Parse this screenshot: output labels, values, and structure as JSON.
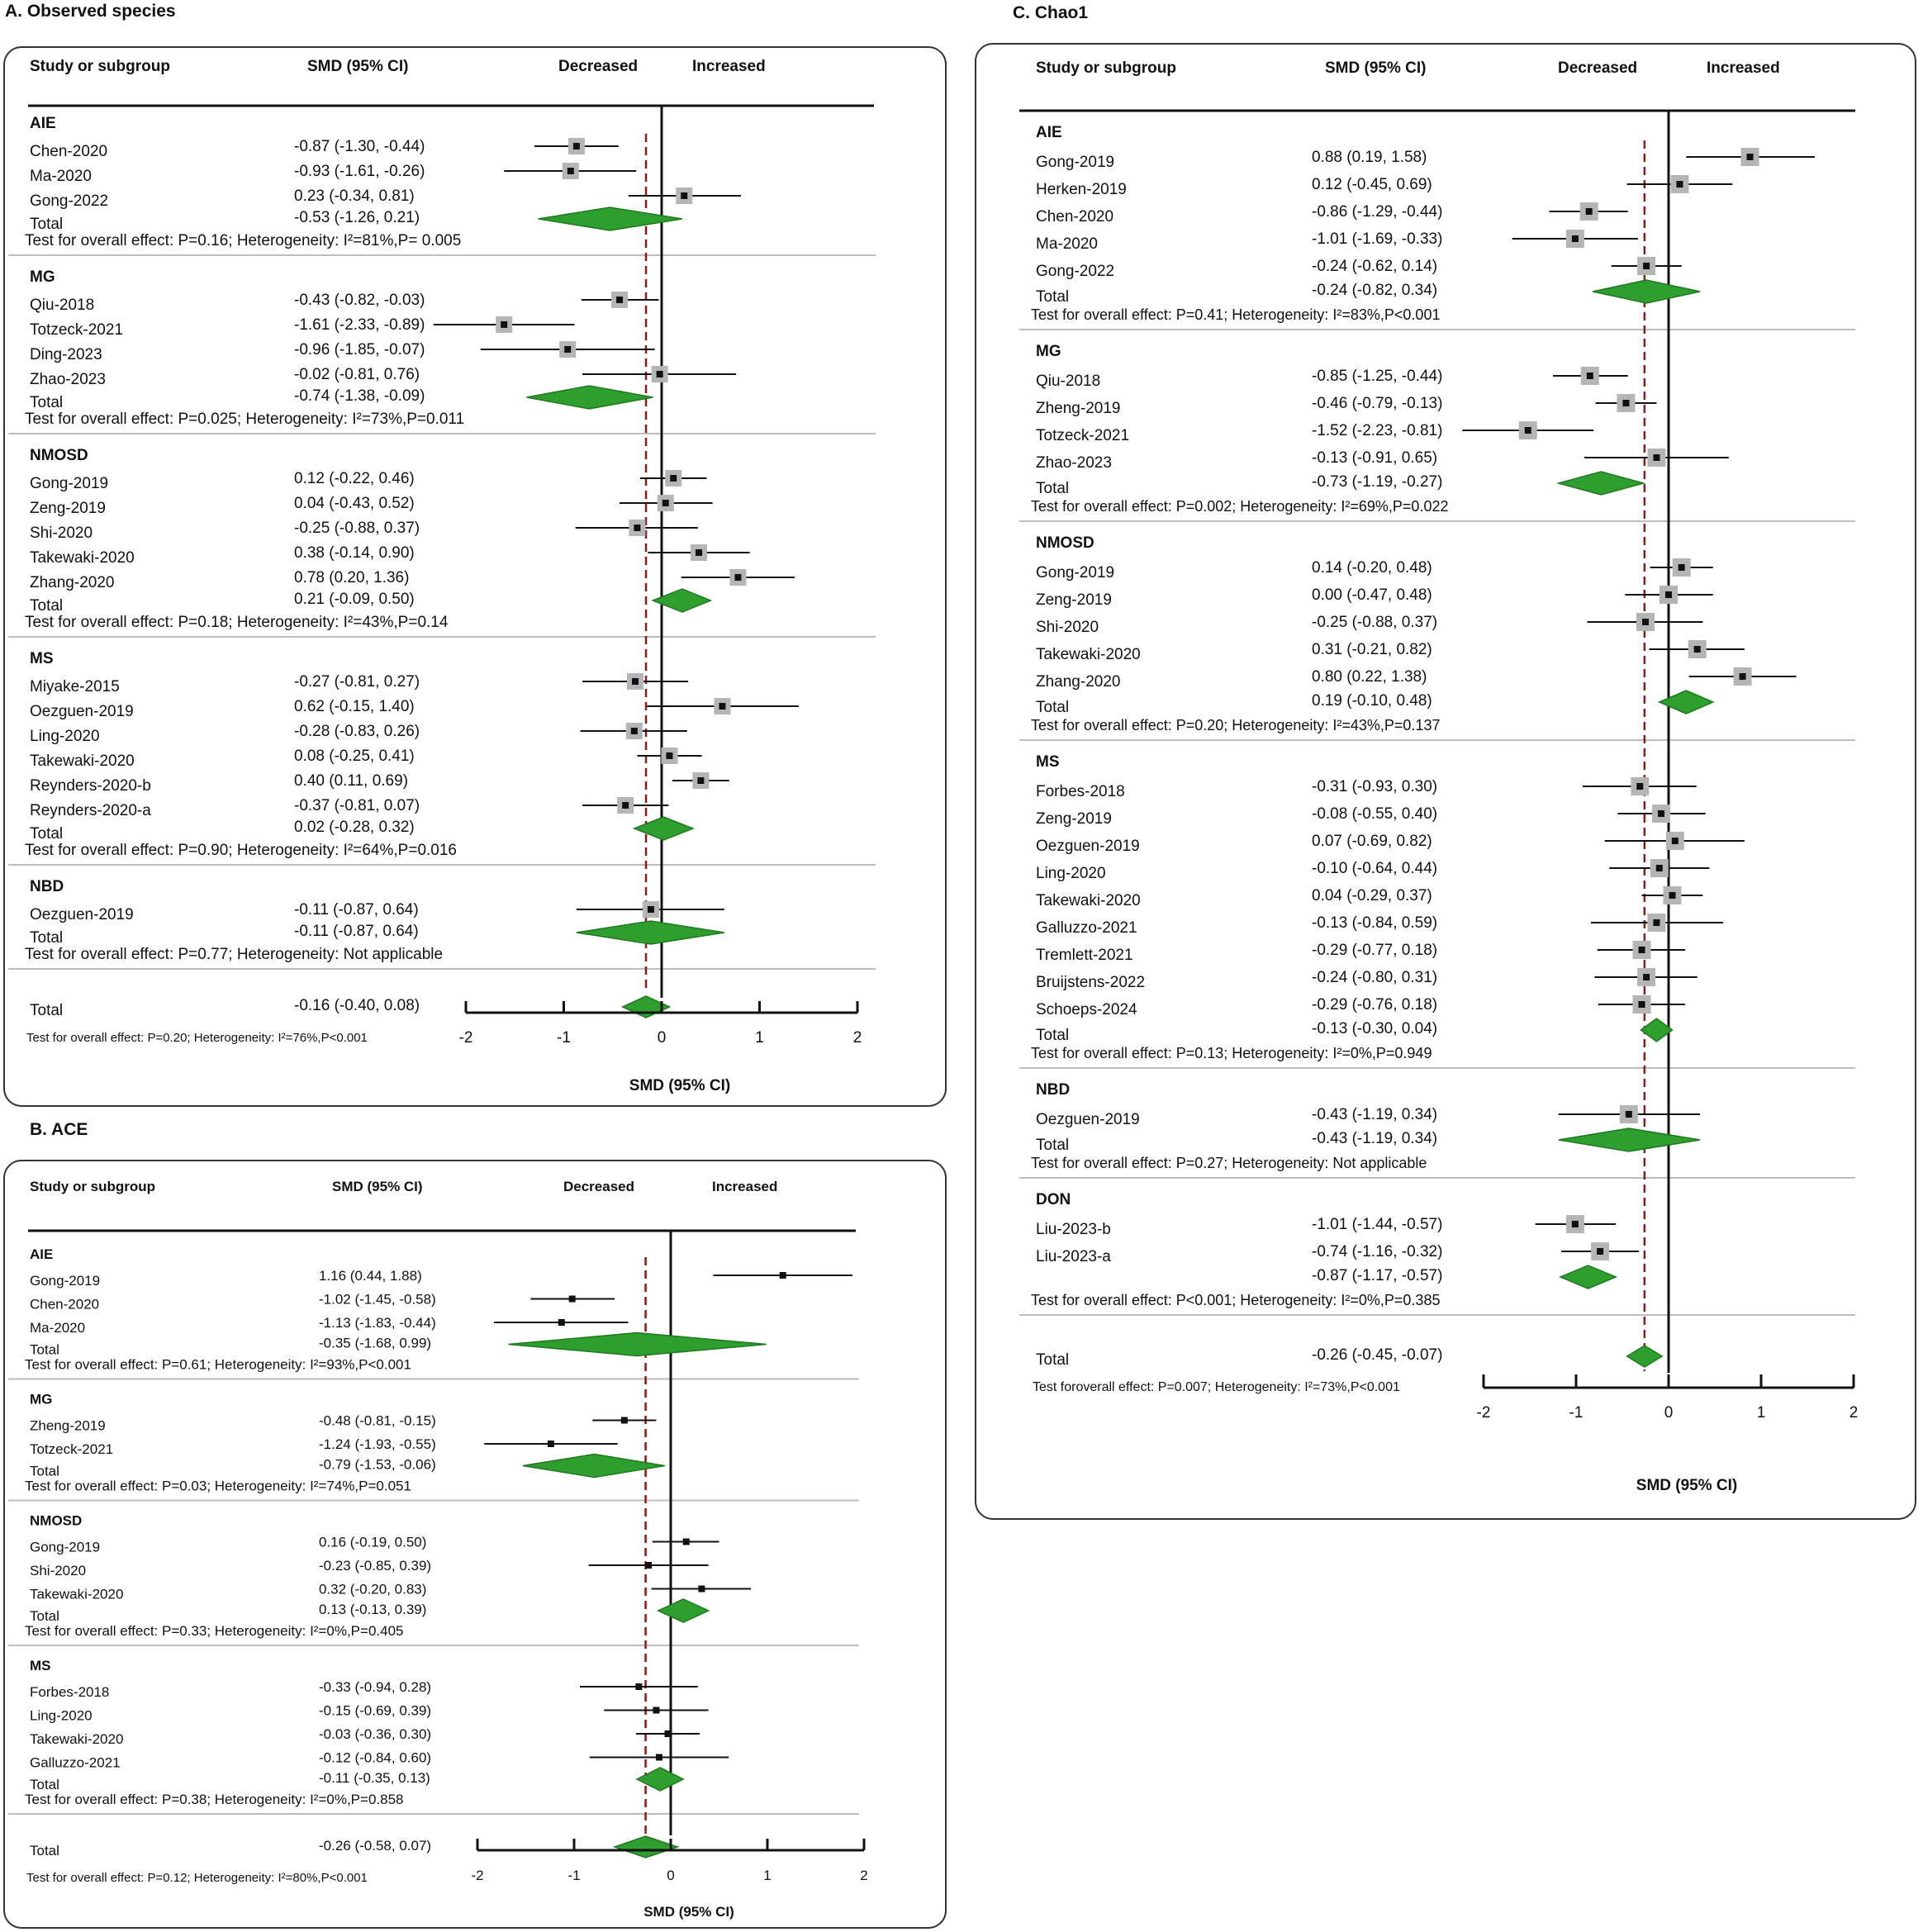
{
  "colors": {
    "diamond_fill": "#2e9e2e",
    "diamond_stroke": "#1f7a1f",
    "ref_line": "#8b1a1a",
    "ci_line": "#111111",
    "marker_box": "#b5b5b5",
    "marker_point": "#111111"
  },
  "chart_data": [
    {
      "id": "A",
      "type": "forest",
      "title": "A. Observed species",
      "headers": {
        "study": "Study or subgroup",
        "smd": "SMD (95% CI)",
        "decreased": "Decreased",
        "increased": "Increased"
      },
      "xlabel": "SMD (95% CI)",
      "xlim": [
        -2,
        2
      ],
      "ticks": [
        "-2",
        "-1",
        "0",
        "1",
        "2"
      ],
      "overall_line": -0.16,
      "groups": [
        {
          "name": "AIE",
          "studies": [
            {
              "label": "Chen-2020",
              "ci_text": "-0.87 (-1.30, -0.44)",
              "est": -0.87,
              "lo": -1.3,
              "hi": -0.44
            },
            {
              "label": "Ma-2020",
              "ci_text": "-0.93 (-1.61, -0.26)",
              "est": -0.93,
              "lo": -1.61,
              "hi": -0.26
            },
            {
              "label": "Gong-2022",
              "ci_text": "0.23 (-0.34, 0.81)",
              "est": 0.23,
              "lo": -0.34,
              "hi": 0.81
            }
          ],
          "total": {
            "label": "Total",
            "ci_text": "-0.53 (-1.26, 0.21)",
            "est": -0.53,
            "lo": -1.26,
            "hi": 0.21
          },
          "test": "Test for overall effect: P=0.16; Heterogeneity: I²=81%,P= 0.005"
        },
        {
          "name": "MG",
          "studies": [
            {
              "label": "Qiu-2018",
              "ci_text": "-0.43 (-0.82, -0.03)",
              "est": -0.43,
              "lo": -0.82,
              "hi": -0.03
            },
            {
              "label": "Totzeck-2021",
              "ci_text": "-1.61 (-2.33, -0.89)",
              "est": -1.61,
              "lo": -2.33,
              "hi": -0.89
            },
            {
              "label": "Ding-2023",
              "ci_text": "-0.96 (-1.85, -0.07)",
              "est": -0.96,
              "lo": -1.85,
              "hi": -0.07
            },
            {
              "label": "Zhao-2023",
              "ci_text": "-0.02 (-0.81, 0.76)",
              "est": -0.02,
              "lo": -0.81,
              "hi": 0.76
            }
          ],
          "total": {
            "label": "Total",
            "ci_text": "-0.74 (-1.38, -0.09)",
            "est": -0.74,
            "lo": -1.38,
            "hi": -0.09
          },
          "test": "Test for overall effect: P=0.025; Heterogeneity: I²=73%,P=0.011"
        },
        {
          "name": "NMOSD",
          "studies": [
            {
              "label": "Gong-2019",
              "ci_text": "0.12 (-0.22, 0.46)",
              "est": 0.12,
              "lo": -0.22,
              "hi": 0.46
            },
            {
              "label": "Zeng-2019",
              "ci_text": "0.04 (-0.43, 0.52)",
              "est": 0.04,
              "lo": -0.43,
              "hi": 0.52
            },
            {
              "label": "Shi-2020",
              "ci_text": "-0.25 (-0.88, 0.37)",
              "est": -0.25,
              "lo": -0.88,
              "hi": 0.37
            },
            {
              "label": "Takewaki-2020",
              "ci_text": "0.38 (-0.14, 0.90)",
              "est": 0.38,
              "lo": -0.14,
              "hi": 0.9
            },
            {
              "label": "Zhang-2020",
              "ci_text": "0.78 (0.20, 1.36)",
              "est": 0.78,
              "lo": 0.2,
              "hi": 1.36
            }
          ],
          "total": {
            "label": "Total",
            "ci_text": "0.21 (-0.09, 0.50)",
            "est": 0.21,
            "lo": -0.09,
            "hi": 0.5
          },
          "test": "Test for overall effect: P=0.18; Heterogeneity: I²=43%,P=0.14"
        },
        {
          "name": "MS",
          "studies": [
            {
              "label": "Miyake-2015",
              "ci_text": "-0.27 (-0.81, 0.27)",
              "est": -0.27,
              "lo": -0.81,
              "hi": 0.27
            },
            {
              "label": "Oezguen-2019",
              "ci_text": "0.62 (-0.15, 1.40)",
              "est": 0.62,
              "lo": -0.15,
              "hi": 1.4
            },
            {
              "label": "Ling-2020",
              "ci_text": "-0.28 (-0.83, 0.26)",
              "est": -0.28,
              "lo": -0.83,
              "hi": 0.26
            },
            {
              "label": "Takewaki-2020",
              "ci_text": "0.08 (-0.25, 0.41)",
              "est": 0.08,
              "lo": -0.25,
              "hi": 0.41
            },
            {
              "label": "Reynders-2020-b",
              "ci_text": "0.40 (0.11, 0.69)",
              "est": 0.4,
              "lo": 0.11,
              "hi": 0.69
            },
            {
              "label": "Reynders-2020-a",
              "ci_text": "-0.37 (-0.81, 0.07)",
              "est": -0.37,
              "lo": -0.81,
              "hi": 0.07
            }
          ],
          "total": {
            "label": "Total",
            "ci_text": "0.02 (-0.28, 0.32)",
            "est": 0.02,
            "lo": -0.28,
            "hi": 0.32
          },
          "test": "Test for overall effect: P=0.90; Heterogeneity: I²=64%,P=0.016"
        },
        {
          "name": "NBD",
          "studies": [
            {
              "label": "Oezguen-2019",
              "ci_text": "-0.11 (-0.87, 0.64)",
              "est": -0.11,
              "lo": -0.87,
              "hi": 0.64
            }
          ],
          "total": {
            "label": "Total",
            "ci_text": "-0.11 (-0.87, 0.64)",
            "est": -0.11,
            "lo": -0.87,
            "hi": 0.64
          },
          "test": "Test for overall effect: P=0.77; Heterogeneity: Not applicable"
        }
      ],
      "overall": {
        "label": "Total",
        "ci_text": "-0.16 (-0.40, 0.08)",
        "est": -0.16,
        "lo": -0.4,
        "hi": 0.08,
        "test": "Test for overall effect: P=0.20; Heterogeneity: I²=76%,P<0.001"
      }
    },
    {
      "id": "B",
      "type": "forest",
      "title": "B. ACE",
      "headers": {
        "study": "Study or subgroup",
        "smd": "SMD (95% CI)",
        "decreased": "Decreased",
        "increased": "Increased"
      },
      "xlabel": "SMD (95% CI)",
      "xlim": [
        -2,
        2
      ],
      "ticks": [
        "-2",
        "-1",
        "0",
        "1",
        "2"
      ],
      "overall_line": -0.26,
      "groups": [
        {
          "name": "AIE",
          "studies": [
            {
              "label": "Gong-2019",
              "ci_text": "1.16 (0.44, 1.88)",
              "est": 1.16,
              "lo": 0.44,
              "hi": 1.88
            },
            {
              "label": "Chen-2020",
              "ci_text": "-1.02 (-1.45, -0.58)",
              "est": -1.02,
              "lo": -1.45,
              "hi": -0.58
            },
            {
              "label": "Ma-2020",
              "ci_text": "-1.13 (-1.83, -0.44)",
              "est": -1.13,
              "lo": -1.83,
              "hi": -0.44
            }
          ],
          "total": {
            "label": "Total",
            "ci_text": "-0.35 (-1.68, 0.99)",
            "est": -0.35,
            "lo": -1.68,
            "hi": 0.99
          },
          "test": "Test for overall effect: P=0.61; Heterogeneity: I²=93%,P<0.001"
        },
        {
          "name": "MG",
          "studies": [
            {
              "label": "Zheng-2019",
              "ci_text": "-0.48 (-0.81, -0.15)",
              "est": -0.48,
              "lo": -0.81,
              "hi": -0.15
            },
            {
              "label": "Totzeck-2021",
              "ci_text": "-1.24 (-1.93, -0.55)",
              "est": -1.24,
              "lo": -1.93,
              "hi": -0.55
            }
          ],
          "total": {
            "label": "Total",
            "ci_text": "-0.79 (-1.53, -0.06)",
            "est": -0.79,
            "lo": -1.53,
            "hi": -0.06
          },
          "test": "Test for overall effect: P=0.03; Heterogeneity: I²=74%,P=0.051"
        },
        {
          "name": "NMOSD",
          "studies": [
            {
              "label": "Gong-2019",
              "ci_text": "0.16 (-0.19, 0.50)",
              "est": 0.16,
              "lo": -0.19,
              "hi": 0.5
            },
            {
              "label": "Shi-2020",
              "ci_text": "-0.23 (-0.85, 0.39)",
              "est": -0.23,
              "lo": -0.85,
              "hi": 0.39
            },
            {
              "label": "Takewaki-2020",
              "ci_text": "0.32 (-0.20, 0.83)",
              "est": 0.32,
              "lo": -0.2,
              "hi": 0.83
            }
          ],
          "total": {
            "label": "Total",
            "ci_text": "0.13 (-0.13, 0.39)",
            "est": 0.13,
            "lo": -0.13,
            "hi": 0.39
          },
          "test": "Test for overall effect: P=0.33; Heterogeneity: I²=0%,P=0.405"
        },
        {
          "name": "MS",
          "studies": [
            {
              "label": "Forbes-2018",
              "ci_text": "-0.33 (-0.94, 0.28)",
              "est": -0.33,
              "lo": -0.94,
              "hi": 0.28
            },
            {
              "label": "Ling-2020",
              "ci_text": "-0.15 (-0.69, 0.39)",
              "est": -0.15,
              "lo": -0.69,
              "hi": 0.39
            },
            {
              "label": "Takewaki-2020",
              "ci_text": "-0.03 (-0.36, 0.30)",
              "est": -0.03,
              "lo": -0.36,
              "hi": 0.3
            },
            {
              "label": "Galluzzo-2021",
              "ci_text": "-0.12 (-0.84, 0.60)",
              "est": -0.12,
              "lo": -0.84,
              "hi": 0.6
            }
          ],
          "total": {
            "label": "Total",
            "ci_text": "-0.11 (-0.35, 0.13)",
            "est": -0.11,
            "lo": -0.35,
            "hi": 0.13
          },
          "test": "Test for overall effect: P=0.38; Heterogeneity: I²=0%,P=0.858"
        }
      ],
      "overall": {
        "label": "Total",
        "ci_text": "-0.26 (-0.58, 0.07)",
        "est": -0.26,
        "lo": -0.58,
        "hi": 0.07,
        "test": "Test for overall effect: P=0.12; Heterogeneity: I²=80%,P<0.001"
      }
    },
    {
      "id": "C",
      "type": "forest",
      "title": "C. Chao1",
      "headers": {
        "study": "Study or subgroup",
        "smd": "SMD (95% CI)",
        "decreased": "Decreased",
        "increased": "Increased"
      },
      "xlabel": "SMD (95% CI)",
      "xlim": [
        -2,
        2
      ],
      "ticks": [
        "-2",
        "-1",
        "0",
        "1",
        "2"
      ],
      "overall_line": -0.26,
      "groups": [
        {
          "name": "AIE",
          "studies": [
            {
              "label": "Gong-2019",
              "ci_text": "0.88 (0.19, 1.58)",
              "est": 0.88,
              "lo": 0.19,
              "hi": 1.58
            },
            {
              "label": "Herken-2019",
              "ci_text": "0.12 (-0.45, 0.69)",
              "est": 0.12,
              "lo": -0.45,
              "hi": 0.69
            },
            {
              "label": "Chen-2020",
              "ci_text": "-0.86 (-1.29, -0.44)",
              "est": -0.86,
              "lo": -1.29,
              "hi": -0.44
            },
            {
              "label": "Ma-2020",
              "ci_text": "-1.01 (-1.69, -0.33)",
              "est": -1.01,
              "lo": -1.69,
              "hi": -0.33
            },
            {
              "label": "Gong-2022",
              "ci_text": "-0.24 (-0.62, 0.14)",
              "est": -0.24,
              "lo": -0.62,
              "hi": 0.14
            }
          ],
          "total": {
            "label": "Total",
            "ci_text": "-0.24 (-0.82, 0.34)",
            "est": -0.24,
            "lo": -0.82,
            "hi": 0.34
          },
          "test": "Test for overall effect: P=0.41; Heterogeneity: I²=83%,P<0.001"
        },
        {
          "name": "MG",
          "studies": [
            {
              "label": "Qiu-2018",
              "ci_text": "-0.85 (-1.25, -0.44)",
              "est": -0.85,
              "lo": -1.25,
              "hi": -0.44
            },
            {
              "label": "Zheng-2019",
              "ci_text": "-0.46 (-0.79, -0.13)",
              "est": -0.46,
              "lo": -0.79,
              "hi": -0.13
            },
            {
              "label": "Totzeck-2021",
              "ci_text": "-1.52 (-2.23, -0.81)",
              "est": -1.52,
              "lo": -2.23,
              "hi": -0.81
            },
            {
              "label": "Zhao-2023",
              "ci_text": "-0.13 (-0.91, 0.65)",
              "est": -0.13,
              "lo": -0.91,
              "hi": 0.65
            }
          ],
          "total": {
            "label": "Total",
            "ci_text": "-0.73 (-1.19, -0.27)",
            "est": -0.73,
            "lo": -1.19,
            "hi": -0.27
          },
          "test": "Test for overall effect: P=0.002; Heterogeneity: I²=69%,P=0.022"
        },
        {
          "name": "NMOSD",
          "studies": [
            {
              "label": "Gong-2019",
              "ci_text": "0.14 (-0.20, 0.48)",
              "est": 0.14,
              "lo": -0.2,
              "hi": 0.48
            },
            {
              "label": "Zeng-2019",
              "ci_text": "0.00 (-0.47, 0.48)",
              "est": 0.0,
              "lo": -0.47,
              "hi": 0.48
            },
            {
              "label": "Shi-2020",
              "ci_text": "-0.25 (-0.88, 0.37)",
              "est": -0.25,
              "lo": -0.88,
              "hi": 0.37
            },
            {
              "label": "Takewaki-2020",
              "ci_text": "0.31 (-0.21, 0.82)",
              "est": 0.31,
              "lo": -0.21,
              "hi": 0.82
            },
            {
              "label": "Zhang-2020",
              "ci_text": "0.80 (0.22, 1.38)",
              "est": 0.8,
              "lo": 0.22,
              "hi": 1.38
            }
          ],
          "total": {
            "label": "Total",
            "ci_text": "0.19 (-0.10, 0.48)",
            "est": 0.19,
            "lo": -0.1,
            "hi": 0.48
          },
          "test": "Test for overall effect: P=0.20; Heterogeneity: I²=43%,P=0.137"
        },
        {
          "name": "MS",
          "studies": [
            {
              "label": "Forbes-2018",
              "ci_text": "-0.31 (-0.93, 0.30)",
              "est": -0.31,
              "lo": -0.93,
              "hi": 0.3
            },
            {
              "label": "Zeng-2019",
              "ci_text": "-0.08 (-0.55, 0.40)",
              "est": -0.08,
              "lo": -0.55,
              "hi": 0.4
            },
            {
              "label": "Oezguen-2019",
              "ci_text": "0.07 (-0.69, 0.82)",
              "est": 0.07,
              "lo": -0.69,
              "hi": 0.82
            },
            {
              "label": "Ling-2020",
              "ci_text": "-0.10 (-0.64, 0.44)",
              "est": -0.1,
              "lo": -0.64,
              "hi": 0.44
            },
            {
              "label": "Takewaki-2020",
              "ci_text": "0.04 (-0.29, 0.37)",
              "est": 0.04,
              "lo": -0.29,
              "hi": 0.37
            },
            {
              "label": "Galluzzo-2021",
              "ci_text": "-0.13 (-0.84, 0.59)",
              "est": -0.13,
              "lo": -0.84,
              "hi": 0.59
            },
            {
              "label": "Tremlett-2021",
              "ci_text": "-0.29 (-0.77, 0.18)",
              "est": -0.29,
              "lo": -0.77,
              "hi": 0.18
            },
            {
              "label": "Bruijstens-2022",
              "ci_text": "-0.24 (-0.80, 0.31)",
              "est": -0.24,
              "lo": -0.8,
              "hi": 0.31
            },
            {
              "label": "Schoeps-2024",
              "ci_text": "-0.29 (-0.76, 0.18)",
              "est": -0.29,
              "lo": -0.76,
              "hi": 0.18
            }
          ],
          "total": {
            "label": "Total",
            "ci_text": "-0.13 (-0.30, 0.04)",
            "est": -0.13,
            "lo": -0.3,
            "hi": 0.04
          },
          "test": "Test for overall effect: P=0.13; Heterogeneity: I²=0%,P=0.949"
        },
        {
          "name": "NBD",
          "studies": [
            {
              "label": "Oezguen-2019",
              "ci_text": "-0.43 (-1.19, 0.34)",
              "est": -0.43,
              "lo": -1.19,
              "hi": 0.34
            }
          ],
          "total": {
            "label": "Total",
            "ci_text": "-0.43 (-1.19, 0.34)",
            "est": -0.43,
            "lo": -1.19,
            "hi": 0.34
          },
          "test": "Test for overall effect: P=0.27; Heterogeneity: Not applicable"
        },
        {
          "name": "DON",
          "studies": [
            {
              "label": "Liu-2023-b",
              "ci_text": "-1.01 (-1.44, -0.57)",
              "est": -1.01,
              "lo": -1.44,
              "hi": -0.57
            },
            {
              "label": "Liu-2023-a",
              "ci_text": "-0.74 (-1.16, -0.32)",
              "est": -0.74,
              "lo": -1.16,
              "hi": -0.32
            }
          ],
          "total": {
            "label": "",
            "ci_text": "-0.87 (-1.17, -0.57)",
            "est": -0.87,
            "lo": -1.17,
            "hi": -0.57
          },
          "test": "Test for overall effect: P<0.001; Heterogeneity: I²=0%,P=0.385"
        }
      ],
      "overall": {
        "label": "Total",
        "ci_text": "-0.26 (-0.45, -0.07)",
        "est": -0.26,
        "lo": -0.45,
        "hi": -0.07,
        "test": "Test foroverall effect: P=0.007; Heterogeneity: I²=73%,P<0.001"
      }
    }
  ]
}
